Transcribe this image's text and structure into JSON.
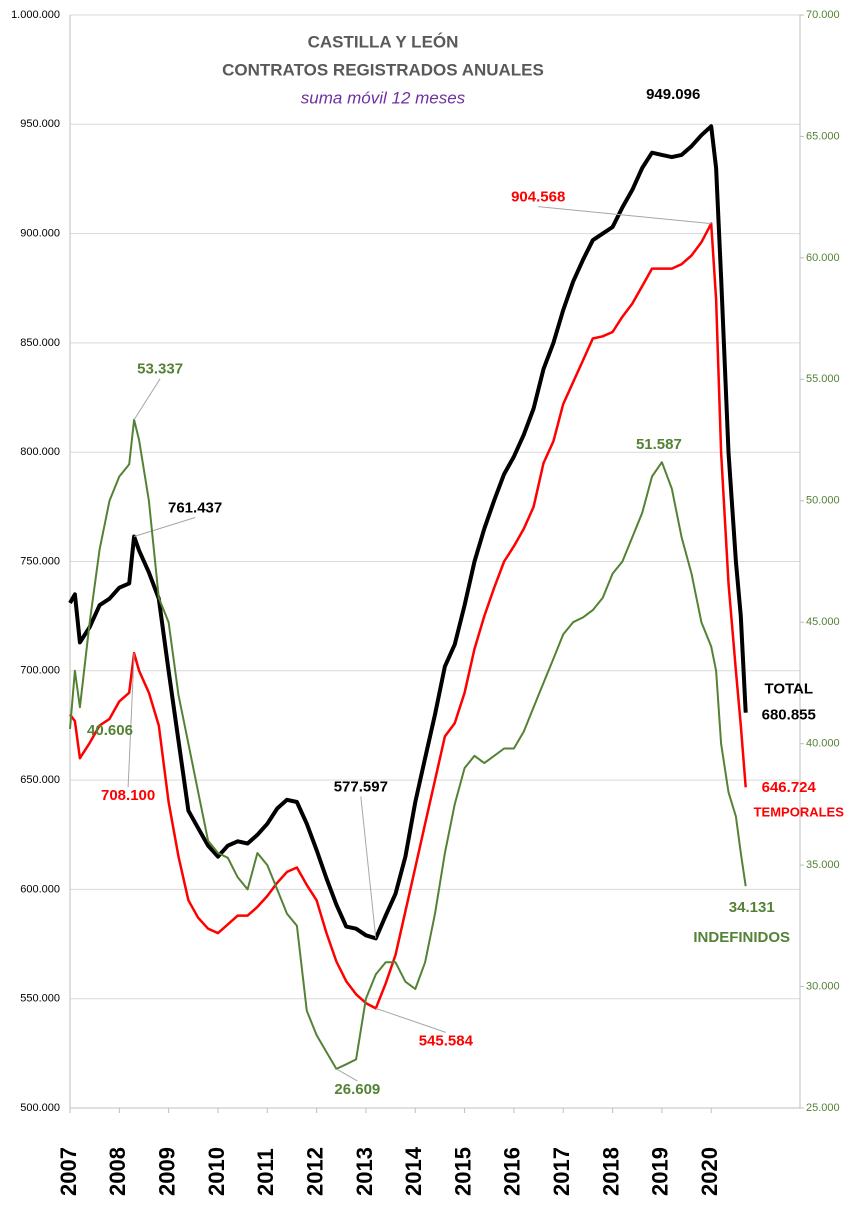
{
  "chart_data": {
    "type": "line",
    "title": [
      "CASTILLA Y LEÓN",
      "CONTRATOS REGISTRADOS ANUALES"
    ],
    "subtitle": "suma móvil 12 meses",
    "x": [
      2007.0,
      2007.1,
      2007.2,
      2007.4,
      2007.6,
      2007.8,
      2008.0,
      2008.2,
      2008.3,
      2008.4,
      2008.6,
      2008.8,
      2009.0,
      2009.2,
      2009.4,
      2009.6,
      2009.8,
      2010.0,
      2010.2,
      2010.4,
      2010.6,
      2010.8,
      2011.0,
      2011.2,
      2011.4,
      2011.6,
      2011.8,
      2012.0,
      2012.2,
      2012.4,
      2012.6,
      2012.8,
      2013.0,
      2013.2,
      2013.4,
      2013.6,
      2013.8,
      2014.0,
      2014.2,
      2014.4,
      2014.6,
      2014.8,
      2015.0,
      2015.2,
      2015.4,
      2015.6,
      2015.8,
      2016.0,
      2016.2,
      2016.4,
      2016.6,
      2016.8,
      2017.0,
      2017.2,
      2017.4,
      2017.6,
      2017.8,
      2018.0,
      2018.2,
      2018.4,
      2018.6,
      2018.8,
      2019.0,
      2019.2,
      2019.4,
      2019.6,
      2019.8,
      2020.0,
      2020.1,
      2020.2,
      2020.35,
      2020.5,
      2020.6,
      2020.7
    ],
    "xlim": [
      2007,
      2021.8
    ],
    "xticks": [
      2007,
      2008,
      2009,
      2010,
      2011,
      2012,
      2013,
      2014,
      2015,
      2016,
      2017,
      2018,
      2019,
      2020
    ],
    "ylim": [
      500000,
      1000000
    ],
    "yticks": [
      {
        "value": 500000,
        "label": "500.000"
      },
      {
        "value": 550000,
        "label": "550.000"
      },
      {
        "value": 600000,
        "label": "600.000"
      },
      {
        "value": 650000,
        "label": "650.000"
      },
      {
        "value": 700000,
        "label": "700.000"
      },
      {
        "value": 750000,
        "label": "750.000"
      },
      {
        "value": 800000,
        "label": "800.000"
      },
      {
        "value": 850000,
        "label": "850.000"
      },
      {
        "value": 900000,
        "label": "900.000"
      },
      {
        "value": 950000,
        "label": "950.000"
      },
      {
        "value": 1000000,
        "label": "1.000.000"
      }
    ],
    "y2lim": [
      25000,
      70000
    ],
    "y2ticks": [
      {
        "value": 25000,
        "label": "25.000"
      },
      {
        "value": 30000,
        "label": "30.000"
      },
      {
        "value": 35000,
        "label": "35.000"
      },
      {
        "value": 40000,
        "label": "40.000"
      },
      {
        "value": 45000,
        "label": "45.000"
      },
      {
        "value": 50000,
        "label": "50.000"
      },
      {
        "value": 55000,
        "label": "55.000"
      },
      {
        "value": 60000,
        "label": "60.000"
      },
      {
        "value": 65000,
        "label": "65.000"
      },
      {
        "value": 70000,
        "label": "70.000"
      }
    ],
    "grid": true,
    "series": [
      {
        "name": "TOTAL",
        "color": "#000000",
        "axis": "y",
        "values": [
          731000,
          735000,
          713000,
          720000,
          730000,
          733000,
          738000,
          740000,
          761437,
          755000,
          745000,
          733000,
          700000,
          668000,
          636000,
          628000,
          620000,
          615000,
          620000,
          622000,
          621000,
          625000,
          630000,
          637000,
          641000,
          640000,
          630000,
          618000,
          605000,
          593000,
          583000,
          582000,
          579000,
          577597,
          588000,
          598000,
          615000,
          640000,
          660000,
          680000,
          702000,
          712000,
          730000,
          750000,
          765000,
          778000,
          790000,
          798000,
          808000,
          820000,
          838000,
          850000,
          865000,
          878000,
          888000,
          897000,
          900000,
          903000,
          912000,
          920000,
          930000,
          937000,
          936000,
          935000,
          936000,
          940000,
          945000,
          949096,
          930000,
          880000,
          800000,
          750000,
          725000,
          680855
        ],
        "value_labels": [
          null,
          null,
          null,
          null,
          null,
          null,
          null,
          null,
          "761.437",
          null,
          null,
          null,
          null,
          null,
          null,
          null,
          null,
          null,
          null,
          null,
          null,
          null,
          null,
          null,
          null,
          null,
          null,
          null,
          null,
          null,
          null,
          null,
          null,
          "577.597",
          null,
          null,
          null,
          null,
          null,
          null,
          null,
          null,
          null,
          null,
          null,
          null,
          null,
          null,
          null,
          null,
          null,
          null,
          null,
          null,
          null,
          null,
          null,
          null,
          null,
          null,
          null,
          null,
          null,
          null,
          null,
          null,
          null,
          "949.096",
          null,
          null,
          null,
          null,
          null,
          "680.855"
        ]
      },
      {
        "name": "TEMPORALES",
        "color": "#ff0000",
        "axis": "y",
        "values": [
          680000,
          677000,
          660000,
          667000,
          675000,
          678000,
          686000,
          690000,
          708100,
          700000,
          690000,
          675000,
          640000,
          615000,
          595000,
          587000,
          582000,
          580000,
          584000,
          588000,
          588000,
          592000,
          597000,
          603000,
          608000,
          610000,
          602000,
          595000,
          580000,
          567000,
          558000,
          552000,
          548000,
          545584,
          557000,
          570000,
          590000,
          610000,
          630000,
          650000,
          670000,
          676000,
          690000,
          710000,
          725000,
          738000,
          750000,
          757000,
          765000,
          775000,
          795000,
          805000,
          822000,
          832000,
          842000,
          852000,
          853000,
          855000,
          862000,
          868000,
          876000,
          884000,
          884000,
          884000,
          886000,
          890000,
          896000,
          904568,
          870000,
          800000,
          740000,
          700000,
          675000,
          646724
        ],
        "value_labels": [
          null,
          null,
          null,
          null,
          null,
          null,
          null,
          null,
          "708.100",
          null,
          null,
          null,
          null,
          null,
          null,
          null,
          null,
          null,
          null,
          null,
          null,
          null,
          null,
          null,
          null,
          null,
          null,
          null,
          null,
          null,
          null,
          null,
          null,
          "545.584",
          null,
          null,
          null,
          null,
          null,
          null,
          null,
          null,
          null,
          null,
          null,
          null,
          null,
          null,
          null,
          null,
          null,
          null,
          null,
          null,
          null,
          null,
          null,
          null,
          null,
          null,
          null,
          null,
          null,
          null,
          null,
          null,
          null,
          "904.568",
          null,
          null,
          null,
          null,
          null,
          "646.724"
        ]
      },
      {
        "name": "INDEFINIDOS",
        "color": "#548235",
        "axis": "y2",
        "values": [
          40606,
          43000,
          41500,
          45000,
          48000,
          50000,
          51000,
          51500,
          53337,
          52500,
          50000,
          46000,
          45000,
          42000,
          40000,
          38000,
          36000,
          35500,
          35300,
          34500,
          34000,
          35500,
          35000,
          34000,
          33000,
          32500,
          29000,
          28000,
          27300,
          26609,
          26800,
          27000,
          29500,
          30500,
          31000,
          31000,
          30200,
          29900,
          31000,
          33000,
          35500,
          37500,
          39000,
          39500,
          39200,
          39500,
          39800,
          39800,
          40500,
          41500,
          42500,
          43500,
          44500,
          45000,
          45200,
          45500,
          46000,
          47000,
          47500,
          48500,
          49500,
          51000,
          51587,
          50500,
          48500,
          47000,
          45000,
          44000,
          43000,
          40000,
          38000,
          37000,
          35500,
          34131
        ],
        "value_labels": [
          "40.606",
          null,
          null,
          null,
          null,
          null,
          null,
          null,
          "53.337",
          null,
          null,
          null,
          null,
          null,
          null,
          null,
          null,
          null,
          null,
          null,
          null,
          null,
          null,
          null,
          null,
          null,
          null,
          null,
          null,
          "26.609",
          null,
          null,
          null,
          null,
          null,
          null,
          null,
          null,
          null,
          null,
          null,
          null,
          null,
          null,
          null,
          null,
          null,
          null,
          null,
          null,
          null,
          null,
          null,
          null,
          null,
          null,
          null,
          null,
          null,
          null,
          null,
          null,
          "51.587",
          null,
          null,
          null,
          null,
          null,
          null,
          null,
          null,
          null,
          null,
          "34.131"
        ]
      }
    ]
  }
}
